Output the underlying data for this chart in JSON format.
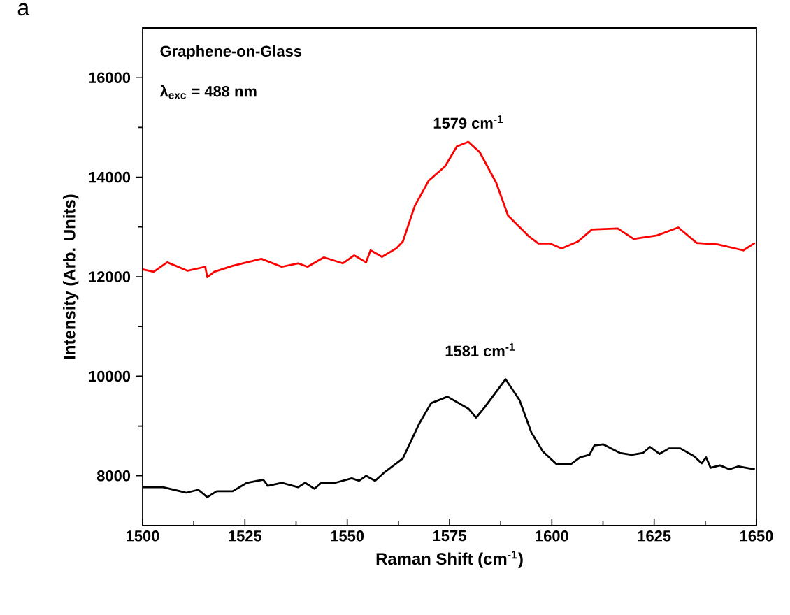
{
  "chart_data": {
    "type": "line",
    "xlabel": "Raman Shift (cm$^{-1}$)",
    "ylabel": "Intensity (Arb. Units)",
    "xlim": [
      1500,
      1650
    ],
    "ylim": [
      7000,
      17000
    ],
    "xticks": [
      1500,
      1525,
      1550,
      1575,
      1600,
      1625,
      1650
    ],
    "yticks": [
      8000,
      10000,
      12000,
      14000,
      16000
    ],
    "grid": false,
    "marker": "none",
    "line_style": "solid",
    "annotations": [
      "a",
      "Graphene-on-Glass",
      "λ$_{exc}$ = 488 nm",
      {
        "text": "1579 cm$^{-1}$",
        "x": 1579.6,
        "y": 14710
      },
      "1581 cm$^{-1}$"
    ],
    "series": [
      {
        "color": "#ff0000",
        "x": [
          1500,
          1502.7,
          1506,
          1511,
          1515.3,
          1515.8,
          1517.5,
          1522,
          1529,
          1534,
          1538,
          1540.3,
          1544.3,
          1548.9,
          1551.7,
          1554.6,
          1555.7,
          1558.5,
          1562,
          1563.6,
          1566.5,
          1569.9,
          1573.9,
          1576.8,
          1579.6,
          1582.4,
          1586.4,
          1589.3,
          1591.6,
          1594.4,
          1596.7,
          1599.5,
          1602.4,
          1606.4,
          1609.8,
          1616.1,
          1620,
          1625.7,
          1630.9,
          1635.4,
          1640.5,
          1646.8,
          1649.6
        ],
        "values": [
          12150,
          12100,
          12290,
          12120,
          12200,
          11990,
          12100,
          12220,
          12360,
          12200,
          12270,
          12200,
          12390,
          12270,
          12430,
          12290,
          12530,
          12400,
          12570,
          12710,
          13420,
          13930,
          14220,
          14620,
          14710,
          14500,
          13890,
          13230,
          13040,
          12810,
          12670,
          12670,
          12570,
          12710,
          12950,
          12970,
          12760,
          12830,
          12990,
          12680,
          12650,
          12530,
          12680
        ]
      },
      {
        "color": "#000000",
        "x": [
          1500,
          1505,
          1510.7,
          1513.6,
          1515.8,
          1518.1,
          1522,
          1525.5,
          1529.5,
          1530.6,
          1534,
          1538,
          1539.7,
          1542,
          1543.7,
          1547.1,
          1551.1,
          1552.9,
          1554.6,
          1556.8,
          1559.1,
          1563.6,
          1567.6,
          1570.5,
          1574.5,
          1579.6,
          1581.5,
          1583.6,
          1588.7,
          1592.1,
          1595,
          1597.8,
          1601.2,
          1604.6,
          1606.9,
          1609.2,
          1610.4,
          1612.6,
          1616.6,
          1619.5,
          1622.3,
          1624,
          1626.3,
          1628.6,
          1631.4,
          1634.8,
          1636.6,
          1637.7,
          1638.8,
          1641.1,
          1643.4,
          1645.6,
          1649.6
        ],
        "values": [
          7770,
          7770,
          7660,
          7720,
          7570,
          7690,
          7690,
          7860,
          7920,
          7800,
          7860,
          7770,
          7860,
          7740,
          7860,
          7860,
          7950,
          7900,
          8000,
          7900,
          8070,
          8350,
          9050,
          9460,
          9590,
          9350,
          9170,
          9380,
          9940,
          9520,
          8870,
          8490,
          8230,
          8230,
          8370,
          8420,
          8610,
          8630,
          8460,
          8420,
          8460,
          8580,
          8440,
          8550,
          8550,
          8390,
          8250,
          8370,
          8160,
          8210,
          8130,
          8190,
          8130
        ]
      }
    ]
  }
}
